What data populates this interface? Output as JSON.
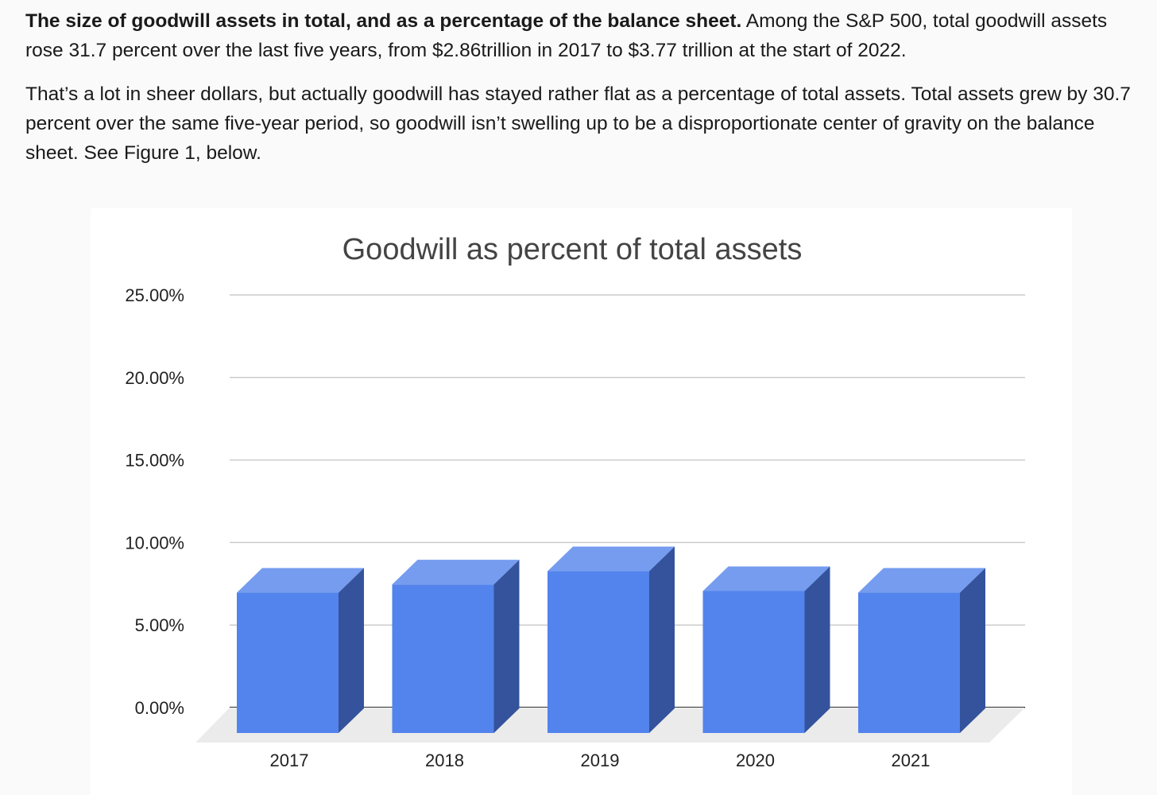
{
  "article": {
    "paragraph1_bold": "The size of goodwill assets in total, and as a percentage of the balance sheet.",
    "paragraph1_rest": " Among the S&P 500, total goodwill assets rose 31.7 percent over the last five years, from $2.86trillion in 2017 to $3.77 trillion at the start of 2022.",
    "paragraph2": "That’s a lot in sheer dollars, but actually goodwill has stayed rather flat as a percentage of total assets. Total assets grew by 30.7 percent over the same five-year period, so goodwill isn’t swelling up to be a disproportionate center of gravity on the balance sheet. See Figure 1, below."
  },
  "chart_data": {
    "type": "bar",
    "title": "Goodwill as percent of total assets",
    "xlabel": "",
    "ylabel": "",
    "categories": [
      "2017",
      "2018",
      "2019",
      "2020",
      "2021"
    ],
    "values": [
      8.5,
      9.0,
      9.8,
      8.6,
      8.5
    ],
    "ylim": [
      0,
      25
    ],
    "y_ticks": [
      0,
      5,
      10,
      15,
      20,
      25
    ],
    "y_tick_labels": [
      "0.00%",
      "5.00%",
      "10.00%",
      "15.00%",
      "20.00%",
      "25.00%"
    ],
    "grid": true,
    "legend": "none",
    "style": "3d",
    "colors": {
      "bar_front": "#5383ec",
      "bar_top": "#759cef",
      "bar_side": "#34539c",
      "floor": "#ebebeb",
      "grid": "#cccccc",
      "baseline": "#333333"
    }
  }
}
